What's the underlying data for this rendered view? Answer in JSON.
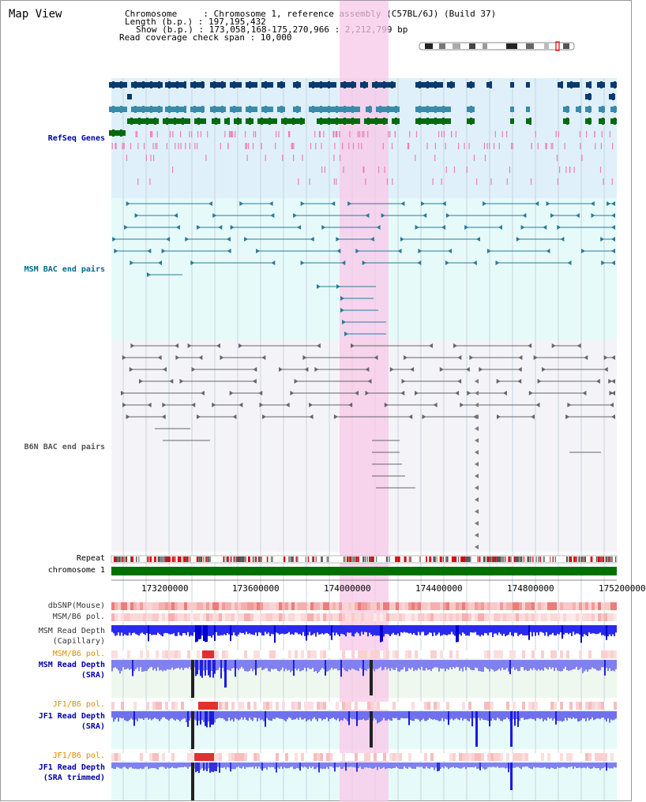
{
  "page": {
    "title": "Map View"
  },
  "header": {
    "chromosome_line": "Chromosome     : Chromosome 1, reference assembly (C57BL/6J) (Build 37)",
    "length_line": "Length (b.p.) : 197,195,432",
    "show_line": "Show (b.p.) : 173,058,168-175,270,966 : 2,212,799 bp",
    "coverage_line": "Read coverage check span : 10,000"
  },
  "tracks": {
    "refseq": {
      "label": "RefSeq Genes",
      "color": "#0000aa"
    },
    "msm_bac": {
      "label": "MSM BAC end pairs",
      "color": "#006a8a"
    },
    "b6n_bac": {
      "label": "B6N BAC end pairs",
      "color": "#555555"
    },
    "repeat": {
      "label": "Repeat"
    },
    "chromosome": {
      "label": "chromosome 1"
    },
    "dbsnp": {
      "label": "dbSNP(Mouse)"
    },
    "msm_b6_pol_1": {
      "label": "MSM/B6 pol."
    },
    "msm_read_cap": {
      "label_line1": "MSM Read Depth",
      "label_line2": "(Capillary)"
    },
    "msm_b6_pol_2": {
      "label": "MSM/B6 pol."
    },
    "msm_read_sra": {
      "label_line1": "MSM Read Depth",
      "label_line2": "(SRA)"
    },
    "jf1_b6_pol_1": {
      "label": "JF1/B6 pol."
    },
    "jf1_read_sra": {
      "label_line1": "JF1 Read Depth",
      "label_line2": "(SRA)"
    },
    "jf1_b6_pol_2": {
      "label": "JF1/B6 pol."
    },
    "jf1_read_trim": {
      "label_line1": "JF1 Read Depth",
      "label_line2": "(SRA trimmed)"
    }
  },
  "axis": {
    "ticks": [
      "173200000",
      "173600000",
      "174000000",
      "174400000",
      "174800000",
      "175200000"
    ]
  },
  "colors": {
    "highlight": "#f8c8e8",
    "refseq_bg": "#dff0fa",
    "msm_bg": "#e6fafa",
    "b6n_bg": "#f4f4f8",
    "chrom_bar": "#007000",
    "gene_dark": "#083a6e",
    "gene_mid": "#3a8aaa",
    "gene_green": "#006a10"
  }
}
